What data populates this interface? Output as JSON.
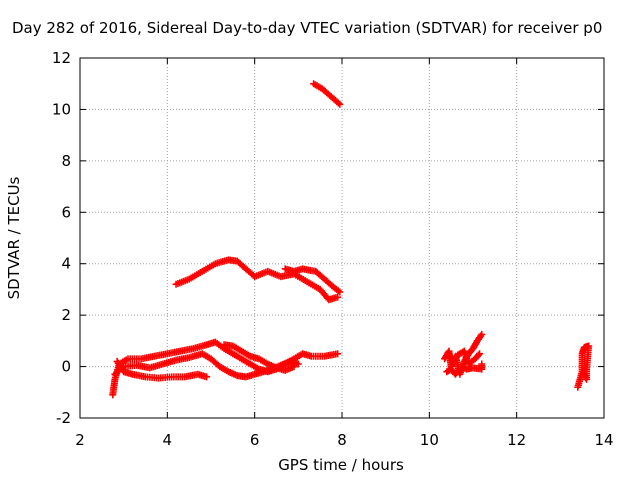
{
  "chart_data": {
    "type": "scatter",
    "title": "Day 282 of 2016, Sidereal Day-to-day VTEC variation (SDTVAR) for receiver p0",
    "xlabel": "GPS time / hours",
    "ylabel": "SDTVAR / TECUs",
    "xlim": [
      2,
      14
    ],
    "ylim": [
      -2,
      12
    ],
    "xticks": [
      2,
      4,
      6,
      8,
      10,
      12,
      14
    ],
    "yticks": [
      -2,
      0,
      2,
      4,
      6,
      8,
      10,
      12
    ],
    "grid": true,
    "marker": "plus",
    "color": "#ff0000",
    "tracks": [
      {
        "points": [
          [
            7.35,
            11.0
          ],
          [
            7.55,
            10.8
          ],
          [
            7.75,
            10.5
          ],
          [
            7.95,
            10.2
          ]
        ]
      },
      {
        "points": [
          [
            4.2,
            3.2
          ],
          [
            4.5,
            3.4
          ],
          [
            4.8,
            3.7
          ],
          [
            5.1,
            4.0
          ],
          [
            5.4,
            4.15
          ],
          [
            5.6,
            4.1
          ],
          [
            5.8,
            3.8
          ],
          [
            6.0,
            3.5
          ],
          [
            6.3,
            3.7
          ],
          [
            6.6,
            3.5
          ],
          [
            6.9,
            3.6
          ],
          [
            7.2,
            3.3
          ],
          [
            7.5,
            3.0
          ],
          [
            7.7,
            2.6
          ],
          [
            7.9,
            2.7
          ]
        ]
      },
      {
        "points": [
          [
            6.7,
            3.8
          ],
          [
            6.9,
            3.7
          ],
          [
            7.1,
            3.8
          ],
          [
            7.4,
            3.7
          ],
          [
            7.6,
            3.4
          ],
          [
            7.8,
            3.1
          ],
          [
            7.95,
            2.9
          ]
        ]
      },
      {
        "points": [
          [
            2.75,
            -1.1
          ],
          [
            2.8,
            -0.5
          ],
          [
            2.9,
            0.1
          ],
          [
            3.1,
            0.3
          ],
          [
            3.4,
            0.3
          ],
          [
            3.7,
            0.4
          ],
          [
            4.0,
            0.5
          ],
          [
            4.3,
            0.6
          ],
          [
            4.6,
            0.7
          ],
          [
            4.9,
            0.85
          ],
          [
            5.1,
            0.95
          ],
          [
            5.3,
            0.7
          ],
          [
            5.5,
            0.5
          ],
          [
            5.7,
            0.3
          ],
          [
            5.9,
            0.1
          ],
          [
            6.1,
            -0.1
          ],
          [
            6.3,
            -0.2
          ],
          [
            6.5,
            -0.1
          ],
          [
            6.7,
            0.1
          ],
          [
            6.9,
            0.3
          ],
          [
            7.1,
            0.5
          ],
          [
            7.3,
            0.4
          ],
          [
            7.6,
            0.4
          ],
          [
            7.9,
            0.5
          ]
        ]
      },
      {
        "points": [
          [
            2.85,
            0.2
          ],
          [
            3.0,
            -0.2
          ],
          [
            3.2,
            -0.3
          ],
          [
            3.5,
            -0.4
          ],
          [
            3.8,
            -0.45
          ],
          [
            4.1,
            -0.4
          ],
          [
            4.4,
            -0.4
          ],
          [
            4.7,
            -0.3
          ],
          [
            4.9,
            -0.4
          ]
        ]
      },
      {
        "points": [
          [
            2.8,
            -0.3
          ],
          [
            3.0,
            0.0
          ],
          [
            3.3,
            0.05
          ],
          [
            3.6,
            -0.05
          ],
          [
            3.9,
            0.1
          ],
          [
            4.2,
            0.25
          ],
          [
            4.5,
            0.35
          ],
          [
            4.8,
            0.5
          ],
          [
            5.0,
            0.3
          ],
          [
            5.2,
            0.0
          ],
          [
            5.4,
            -0.2
          ],
          [
            5.6,
            -0.35
          ],
          [
            5.8,
            -0.4
          ],
          [
            6.0,
            -0.3
          ],
          [
            6.2,
            -0.2
          ],
          [
            6.4,
            -0.1
          ],
          [
            6.6,
            0.05
          ],
          [
            6.8,
            0.2
          ],
          [
            7.0,
            0.1
          ]
        ]
      },
      {
        "points": [
          [
            5.3,
            0.85
          ],
          [
            5.5,
            0.8
          ],
          [
            5.7,
            0.6
          ],
          [
            5.9,
            0.4
          ],
          [
            6.1,
            0.3
          ],
          [
            6.3,
            0.1
          ],
          [
            6.5,
            -0.05
          ],
          [
            6.7,
            -0.15
          ],
          [
            6.9,
            0.0
          ]
        ]
      },
      {
        "points": [
          [
            10.35,
            0.3
          ],
          [
            10.45,
            0.6
          ],
          [
            10.5,
            0.0
          ],
          [
            10.6,
            0.4
          ],
          [
            10.7,
            -0.3
          ],
          [
            10.8,
            0.2
          ],
          [
            10.9,
            0.5
          ],
          [
            11.0,
            0.7
          ],
          [
            11.1,
            1.0
          ],
          [
            11.2,
            1.25
          ]
        ]
      },
      {
        "points": [
          [
            10.4,
            -0.2
          ],
          [
            10.5,
            -0.1
          ],
          [
            10.6,
            -0.3
          ],
          [
            10.75,
            0.0
          ],
          [
            10.85,
            -0.1
          ],
          [
            11.0,
            -0.05
          ],
          [
            11.2,
            -0.1
          ],
          [
            11.2,
            0.1
          ]
        ]
      },
      {
        "points": [
          [
            10.45,
            0.5
          ],
          [
            10.55,
            0.1
          ],
          [
            10.65,
            0.45
          ],
          [
            10.8,
            0.6
          ],
          [
            10.9,
            0.1
          ],
          [
            11.05,
            0.3
          ],
          [
            11.15,
            0.5
          ]
        ]
      },
      {
        "points": [
          [
            13.4,
            -0.8
          ],
          [
            13.45,
            -0.5
          ],
          [
            13.5,
            -0.2
          ],
          [
            13.5,
            0.5
          ],
          [
            13.55,
            0.75
          ],
          [
            13.65,
            0.8
          ],
          [
            13.6,
            -0.1
          ],
          [
            13.6,
            -0.5
          ],
          [
            13.55,
            -0.3
          ]
        ]
      }
    ]
  }
}
